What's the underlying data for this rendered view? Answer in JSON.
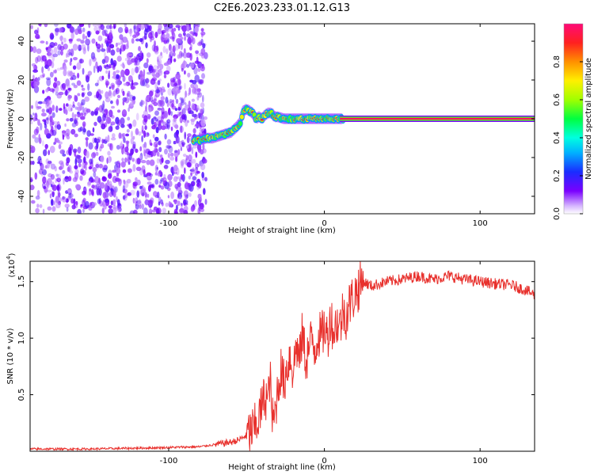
{
  "figure": {
    "title": "C2E6.2023.233.01.12.G13"
  },
  "chart_data": [
    {
      "type": "heatmap",
      "xlabel": "Height of straight line (km)",
      "ylabel": "Frequency (Hz)",
      "xlim": [
        -189,
        135
      ],
      "ylim": [
        -49,
        49
      ],
      "xticks": [
        -100,
        0,
        100
      ],
      "yticks": [
        -40,
        -20,
        0,
        20,
        40
      ],
      "noise_region_x": [
        -189,
        -76
      ],
      "signal_track": {
        "x": [
          -84,
          -80,
          -76,
          -72,
          -68,
          -64,
          -60,
          -56,
          -54,
          -52,
          -50,
          -48,
          -46,
          -44,
          -42,
          -40,
          -38,
          -36,
          -34,
          -32,
          -30,
          -26,
          -22,
          -18,
          -14,
          -10,
          -6,
          -2,
          2,
          6,
          10,
          135
        ],
        "y": [
          -11,
          -11,
          -10,
          -10,
          -9,
          -8,
          -7,
          -4,
          -2,
          4,
          5,
          4,
          3,
          0,
          1,
          0,
          2,
          3,
          3,
          1,
          1,
          0,
          0,
          0,
          0,
          0,
          0,
          0,
          0,
          0,
          0,
          0
        ]
      },
      "colorbar": {
        "label": "Normalized spectral amplitude",
        "range": [
          0,
          1
        ],
        "ticks": [
          0.0,
          0.2,
          0.4,
          0.6,
          0.8
        ]
      }
    },
    {
      "type": "line",
      "xlabel": "Height of straight line (km)",
      "ylabel": "SNR (10 * v/v)",
      "multiplier_label": "(x10",
      "multiplier_exp": "4",
      "xlim": [
        -189,
        135
      ],
      "ylim": [
        0,
        1.68
      ],
      "xticks": [
        -100,
        0,
        100
      ],
      "yticks": [
        0.5,
        1.0,
        1.5
      ],
      "color": "#e8312d",
      "series": [
        {
          "x": [
            -189,
            -150,
            -110,
            -80,
            -70,
            -60,
            -55,
            -50,
            -45,
            -42,
            -40,
            -38,
            -36,
            -35,
            -34,
            -33,
            -32,
            -30,
            -28,
            -26,
            -24,
            -22,
            -20,
            -18,
            -16,
            -14,
            -12,
            -10,
            -8,
            -6,
            -4,
            -2,
            0,
            2,
            4,
            6,
            8,
            10,
            12,
            14,
            16,
            18,
            20,
            22,
            25,
            30,
            40,
            50,
            60,
            70,
            80,
            90,
            100,
            110,
            120,
            130,
            135
          ],
          "y": [
            0.02,
            0.02,
            0.03,
            0.04,
            0.06,
            0.08,
            0.1,
            0.14,
            0.2,
            0.3,
            0.4,
            0.5,
            0.45,
            0.7,
            0.38,
            0.25,
            0.3,
            0.55,
            0.72,
            0.6,
            0.75,
            0.85,
            0.7,
            0.95,
            0.8,
            1.05,
            0.8,
            0.9,
            1.0,
            0.9,
            1.05,
            1.0,
            1.1,
            1.0,
            1.2,
            1.05,
            1.15,
            1.1,
            1.25,
            1.2,
            1.3,
            1.35,
            1.4,
            1.45,
            1.5,
            1.46,
            1.5,
            1.52,
            1.55,
            1.52,
            1.55,
            1.52,
            1.5,
            1.48,
            1.47,
            1.42,
            1.38
          ]
        }
      ]
    }
  ]
}
